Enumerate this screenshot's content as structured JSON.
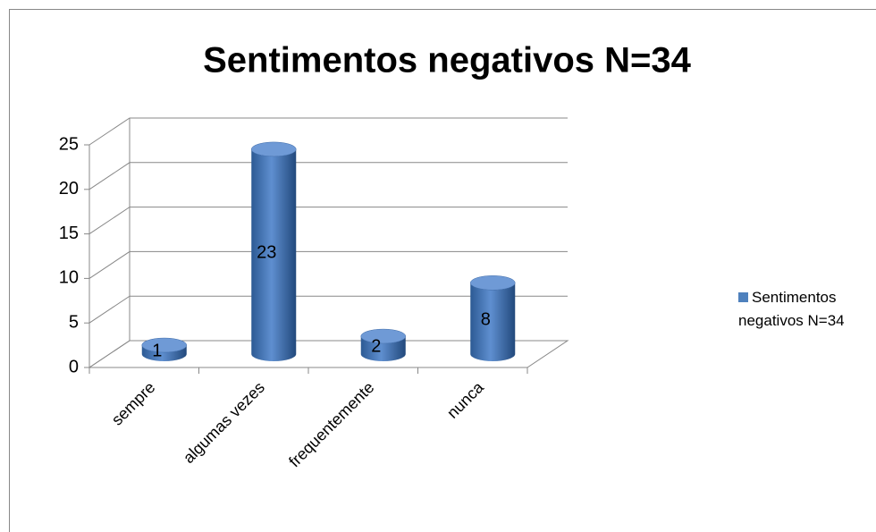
{
  "chart_data": {
    "type": "bar",
    "title": "Sentimentos negativos N=34",
    "categories": [
      "sempre",
      "algumas vezes",
      "frequentemente",
      "nunca"
    ],
    "series": [
      {
        "name": "Sentimentos negativos N=34",
        "color": "#4f81bd",
        "values": [
          1,
          23,
          2,
          8
        ]
      }
    ],
    "ylim": [
      0,
      25
    ],
    "yticks": [
      0,
      5,
      10,
      15,
      20,
      25
    ],
    "grid": true,
    "legend": "right"
  }
}
